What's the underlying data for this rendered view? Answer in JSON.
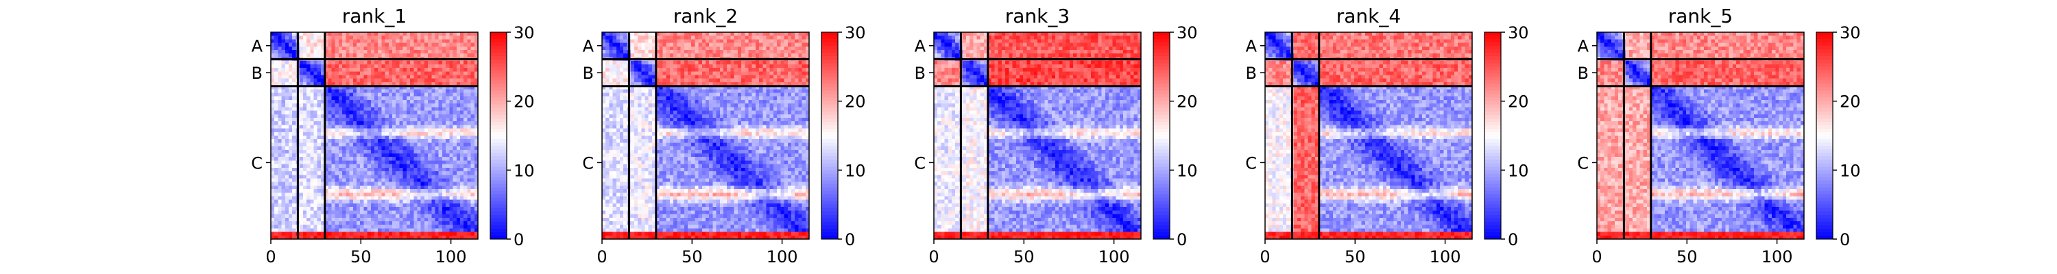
{
  "figure": {
    "description_type": "pae-heatmap-grid"
  },
  "chart_data": [
    {
      "type": "heatmap",
      "title": "rank_1",
      "xlabel": "",
      "ylabel": "",
      "x_ticks": [
        0,
        50,
        100
      ],
      "x_range": [
        0,
        115
      ],
      "y_range": [
        0,
        115
      ],
      "chain_labels": [
        "A",
        "B",
        "C"
      ],
      "chain_boundaries": [
        0,
        15,
        30,
        115
      ],
      "colorbar": {
        "ticks": [
          0,
          10,
          20,
          30
        ],
        "range": [
          0,
          30
        ],
        "colormap": "bwr"
      },
      "block_means": [
        [
          2,
          16,
          22
        ],
        [
          15,
          2,
          24
        ],
        [
          12,
          13,
          5
        ]
      ],
      "bottom_strip_value": 28
    },
    {
      "type": "heatmap",
      "title": "rank_2",
      "xlabel": "",
      "ylabel": "",
      "x_ticks": [
        0,
        50,
        100
      ],
      "x_range": [
        0,
        115
      ],
      "y_range": [
        0,
        115
      ],
      "chain_labels": [
        "A",
        "B",
        "C"
      ],
      "chain_boundaries": [
        0,
        15,
        30,
        115
      ],
      "colorbar": {
        "ticks": [
          0,
          10,
          20,
          30
        ],
        "range": [
          0,
          30
        ],
        "colormap": "bwr"
      },
      "block_means": [
        [
          2,
          17,
          22
        ],
        [
          16,
          2,
          24
        ],
        [
          13,
          14,
          5
        ]
      ],
      "bottom_strip_value": 28
    },
    {
      "type": "heatmap",
      "title": "rank_3",
      "xlabel": "",
      "ylabel": "",
      "x_ticks": [
        0,
        50,
        100
      ],
      "x_range": [
        0,
        115
      ],
      "y_range": [
        0,
        115
      ],
      "chain_labels": [
        "A",
        "B",
        "C"
      ],
      "chain_boundaries": [
        0,
        15,
        30,
        115
      ],
      "colorbar": {
        "ticks": [
          0,
          10,
          20,
          30
        ],
        "range": [
          0,
          30
        ],
        "colormap": "bwr"
      },
      "block_means": [
        [
          2,
          20,
          25
        ],
        [
          22,
          2,
          26
        ],
        [
          14,
          15,
          5
        ]
      ],
      "bottom_strip_value": 28
    },
    {
      "type": "heatmap",
      "title": "rank_4",
      "xlabel": "",
      "ylabel": "",
      "x_ticks": [
        0,
        50,
        100
      ],
      "x_range": [
        0,
        115
      ],
      "y_range": [
        0,
        115
      ],
      "chain_labels": [
        "A",
        "B",
        "C"
      ],
      "chain_boundaries": [
        0,
        15,
        30,
        115
      ],
      "colorbar": {
        "ticks": [
          0,
          10,
          20,
          30
        ],
        "range": [
          0,
          30
        ],
        "colormap": "bwr"
      },
      "block_means": [
        [
          2,
          24,
          23
        ],
        [
          22,
          2,
          24
        ],
        [
          15,
          24,
          5
        ]
      ],
      "bottom_strip_value": 28
    },
    {
      "type": "heatmap",
      "title": "rank_5",
      "xlabel": "",
      "ylabel": "",
      "x_ticks": [
        0,
        50,
        100
      ],
      "x_range": [
        0,
        115
      ],
      "y_range": [
        0,
        115
      ],
      "chain_labels": [
        "A",
        "B",
        "C"
      ],
      "chain_boundaries": [
        0,
        15,
        30,
        115
      ],
      "colorbar": {
        "ticks": [
          0,
          10,
          20,
          30
        ],
        "range": [
          0,
          30
        ],
        "colormap": "bwr"
      },
      "block_means": [
        [
          2,
          20,
          22
        ],
        [
          22,
          2,
          24
        ],
        [
          20,
          20,
          5
        ]
      ],
      "bottom_strip_value": 28
    }
  ]
}
